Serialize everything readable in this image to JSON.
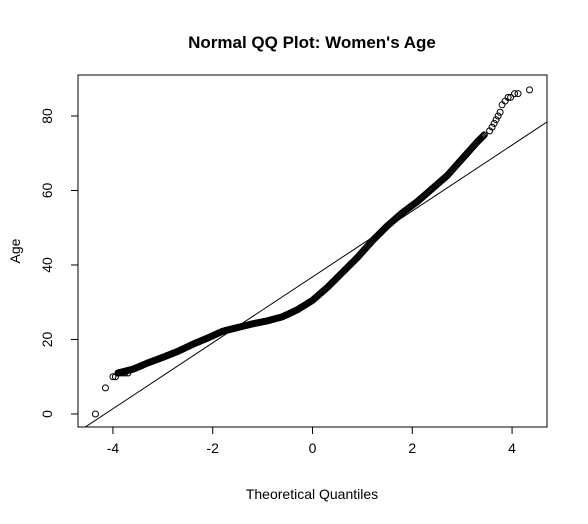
{
  "chart_data": {
    "type": "scatter",
    "title": "Normal QQ Plot: Women's Age",
    "xlabel": "Theoretical Quantiles",
    "ylabel": "Age",
    "xlim": [
      -4.7,
      4.7
    ],
    "ylim": [
      -3.5,
      91
    ],
    "xticks": [
      -4,
      -2,
      0,
      2,
      4
    ],
    "yticks": [
      0,
      20,
      40,
      60,
      80
    ],
    "grid": false,
    "legend": "none",
    "point_style": "open-circle",
    "reference_line": {
      "intercept": 36.8,
      "slope": 8.85
    },
    "quantile_curve": {
      "x": [
        -3.9,
        -3.6,
        -3.3,
        -3.0,
        -2.7,
        -2.4,
        -2.1,
        -1.8,
        -1.5,
        -1.2,
        -0.9,
        -0.6,
        -0.3,
        0.0,
        0.3,
        0.6,
        0.9,
        1.2,
        1.5,
        1.8,
        2.1,
        2.4,
        2.7,
        3.0,
        3.3,
        3.45
      ],
      "y": [
        11.0,
        12.0,
        13.7,
        15.2,
        16.8,
        18.7,
        20.4,
        22.2,
        23.2,
        24.2,
        25.0,
        26.1,
        28.0,
        30.5,
        34.0,
        38.0,
        42.0,
        46.5,
        50.5,
        54.0,
        57.0,
        60.5,
        64.0,
        68.5,
        73.0,
        75.0
      ]
    },
    "tail_points": {
      "x": [
        -4.35,
        -4.15,
        -4.0,
        -3.95,
        -3.88,
        -3.82,
        -3.76,
        -3.7,
        3.55,
        3.6,
        3.64,
        3.68,
        3.72,
        3.76,
        3.8,
        3.86,
        3.92,
        3.97,
        4.05,
        4.12,
        4.35
      ],
      "y": [
        0,
        7,
        10,
        10,
        11,
        11,
        11,
        11,
        76,
        77,
        78,
        79,
        80,
        81,
        83,
        84,
        85,
        85,
        86,
        86,
        87
      ]
    }
  }
}
